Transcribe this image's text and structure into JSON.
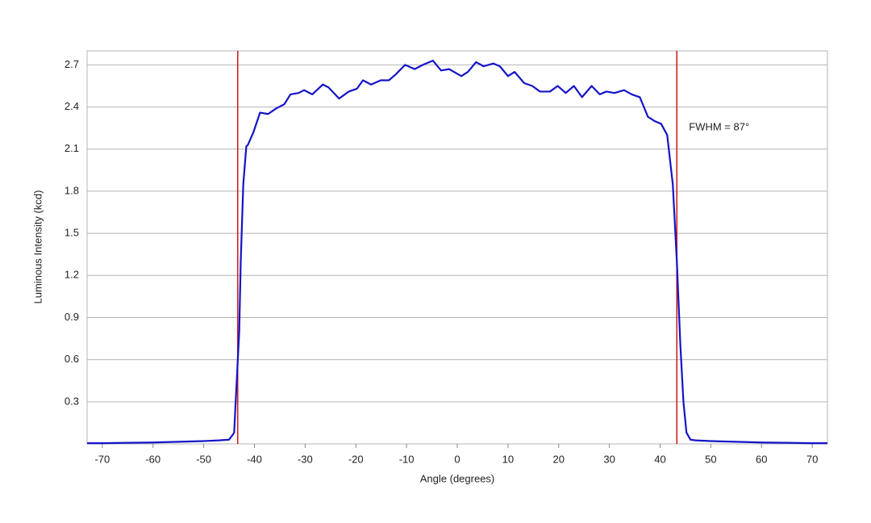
{
  "chart_data": {
    "type": "line",
    "xlabel": "Angle (degrees)",
    "ylabel": "Luminous Intensity (kcd)",
    "annotation": "FWHM = 87°",
    "xlim": [
      -73,
      73
    ],
    "xticks": [
      -70,
      -60,
      -50,
      -40,
      -30,
      -20,
      -10,
      0,
      10,
      20,
      30,
      40,
      50,
      60,
      70
    ],
    "ylim": [
      0,
      2.8
    ],
    "yticks": [
      0.3,
      0.6,
      0.9,
      1.2,
      1.5,
      1.8,
      2.1,
      2.4,
      2.7
    ],
    "grid": true,
    "vlines": [
      -43.3,
      43.3
    ],
    "vline_color": "#cc2020",
    "series": [
      {
        "color": "#1414c8",
        "x": [
          -73,
          -70,
          -65,
          -60,
          -55,
          -50,
          -47,
          -45,
          -44,
          -43.7,
          -43,
          -42.7,
          -42.2,
          -41.6,
          -41.3,
          -40.2,
          -38.9,
          -37.3,
          -35.7,
          -34.1,
          -32.9,
          -31.3,
          -30.2,
          -28.6,
          -26.5,
          -25.4,
          -23.3,
          -21.4,
          -19.8,
          -18.6,
          -17,
          -15.1,
          -13.5,
          -12.2,
          -10.3,
          -8.4,
          -6.8,
          -4.8,
          -3.2,
          -1.6,
          0.8,
          2.1,
          3.7,
          5.2,
          7.1,
          8.4,
          10,
          11.3,
          13.2,
          14.8,
          16.3,
          18.3,
          19.8,
          21.4,
          23,
          24.6,
          26.5,
          28.1,
          29.4,
          31,
          32.9,
          34.4,
          36,
          37.6,
          38.9,
          40.2,
          41.4,
          42.5,
          43.3,
          44,
          44.6,
          45.2,
          46,
          47,
          50,
          55,
          60,
          65,
          70,
          73
        ],
        "values": [
          0.005,
          0.005,
          0.008,
          0.01,
          0.015,
          0.02,
          0.025,
          0.03,
          0.08,
          0.3,
          0.8,
          1.3,
          1.85,
          2.12,
          2.13,
          2.22,
          2.36,
          2.35,
          2.39,
          2.42,
          2.49,
          2.5,
          2.52,
          2.49,
          2.56,
          2.54,
          2.46,
          2.51,
          2.53,
          2.59,
          2.56,
          2.59,
          2.59,
          2.63,
          2.7,
          2.67,
          2.7,
          2.73,
          2.66,
          2.67,
          2.62,
          2.65,
          2.72,
          2.69,
          2.71,
          2.69,
          2.62,
          2.65,
          2.57,
          2.55,
          2.51,
          2.51,
          2.55,
          2.5,
          2.55,
          2.47,
          2.55,
          2.49,
          2.51,
          2.5,
          2.52,
          2.49,
          2.47,
          2.33,
          2.3,
          2.28,
          2.2,
          1.85,
          1.3,
          0.7,
          0.3,
          0.08,
          0.03,
          0.025,
          0.02,
          0.015,
          0.01,
          0.008,
          0.005,
          0.005
        ]
      }
    ]
  }
}
